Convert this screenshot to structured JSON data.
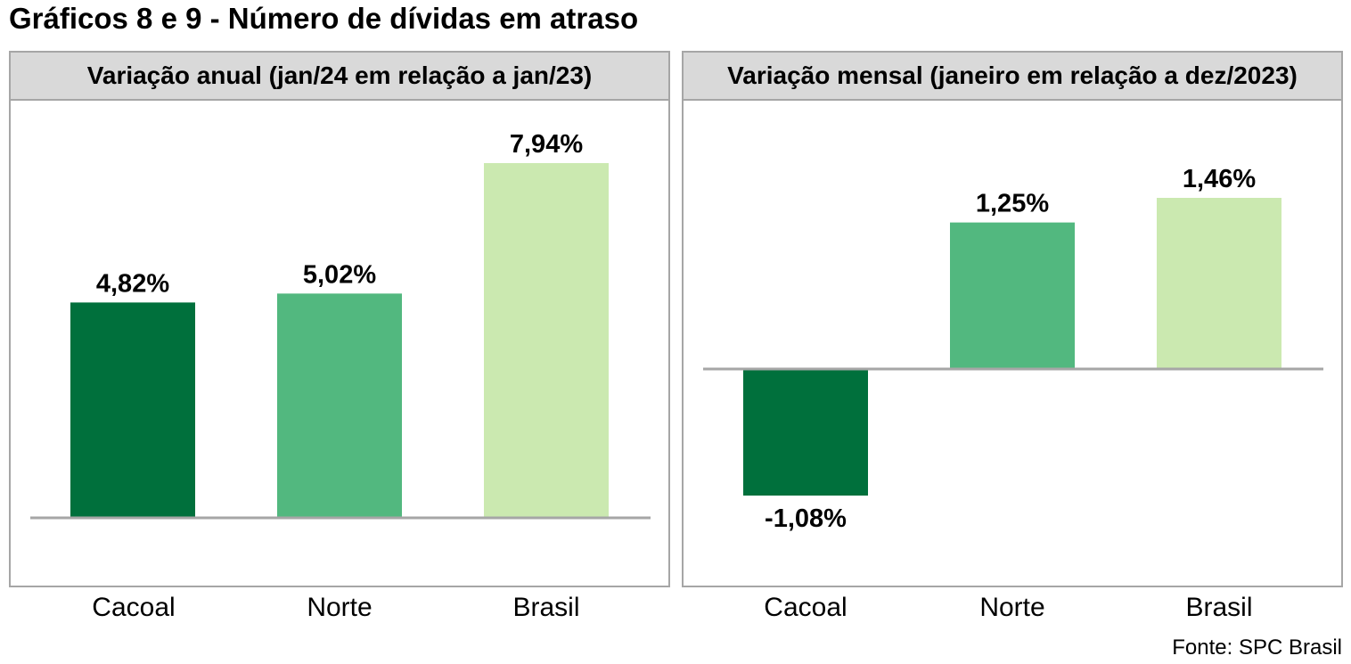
{
  "title": "Gráficos 8 e 9 - Número de dívidas em atraso",
  "source": "Fonte: SPC Brasil",
  "colors": {
    "bar_dark": "#00703c",
    "bar_mid": "#52b87f",
    "bar_light": "#cbe9b0",
    "header_bg": "#d9d9d9",
    "border": "#a6a6a6",
    "baseline": "#a6a6a6"
  },
  "chart_data": [
    {
      "type": "bar",
      "title": "Variação anual (jan/24 em relação a jan/23)",
      "categories": [
        "Cacoal",
        "Norte",
        "Brasil"
      ],
      "values": [
        4.82,
        5.02,
        7.94
      ],
      "value_labels": [
        "4,82%",
        "5,02%",
        "7,94%"
      ],
      "xlabel": "",
      "ylabel": "",
      "grid": false
    },
    {
      "type": "bar",
      "title": "Variação mensal (janeiro em relação a dez/2023)",
      "categories": [
        "Cacoal",
        "Norte",
        "Brasil"
      ],
      "values": [
        -1.08,
        1.25,
        1.46
      ],
      "value_labels": [
        "-1,08%",
        "1,25%",
        "1,46%"
      ],
      "xlabel": "",
      "ylabel": "",
      "grid": false
    }
  ]
}
